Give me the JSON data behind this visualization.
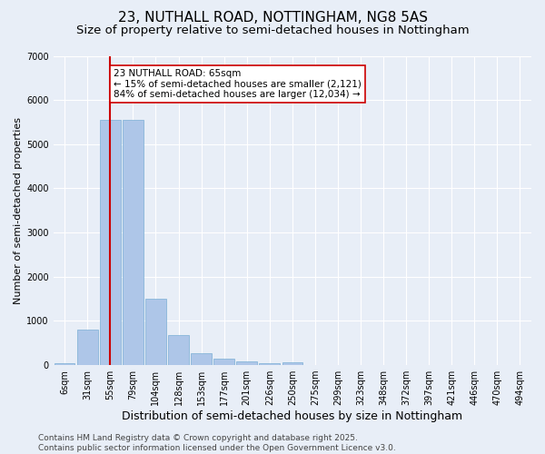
{
  "title": "23, NUTHALL ROAD, NOTTINGHAM, NG8 5AS",
  "subtitle": "Size of property relative to semi-detached houses in Nottingham",
  "xlabel": "Distribution of semi-detached houses by size in Nottingham",
  "ylabel": "Number of semi-detached properties",
  "categories": [
    "6sqm",
    "31sqm",
    "55sqm",
    "79sqm",
    "104sqm",
    "128sqm",
    "153sqm",
    "177sqm",
    "201sqm",
    "226sqm",
    "250sqm",
    "275sqm",
    "299sqm",
    "323sqm",
    "348sqm",
    "372sqm",
    "397sqm",
    "421sqm",
    "446sqm",
    "470sqm",
    "494sqm"
  ],
  "values": [
    50,
    800,
    5550,
    5550,
    1500,
    680,
    260,
    140,
    80,
    50,
    70,
    0,
    0,
    0,
    0,
    0,
    0,
    0,
    0,
    0,
    0
  ],
  "bar_color": "#aec6e8",
  "bar_edge_color": "#7aafd4",
  "property_bin_index": 2,
  "vline_color": "#cc0000",
  "annotation_text": "23 NUTHALL ROAD: 65sqm\n← 15% of semi-detached houses are smaller (2,121)\n84% of semi-detached houses are larger (12,034) →",
  "annotation_box_color": "#ffffff",
  "annotation_box_edge": "#cc0000",
  "ylim": [
    0,
    7000
  ],
  "yticks": [
    0,
    1000,
    2000,
    3000,
    4000,
    5000,
    6000,
    7000
  ],
  "bg_color": "#e8eef7",
  "grid_color": "#ffffff",
  "footer": "Contains HM Land Registry data © Crown copyright and database right 2025.\nContains public sector information licensed under the Open Government Licence v3.0.",
  "title_fontsize": 11,
  "subtitle_fontsize": 9.5,
  "xlabel_fontsize": 9,
  "ylabel_fontsize": 8,
  "tick_fontsize": 7,
  "annotation_fontsize": 7.5,
  "footer_fontsize": 6.5
}
